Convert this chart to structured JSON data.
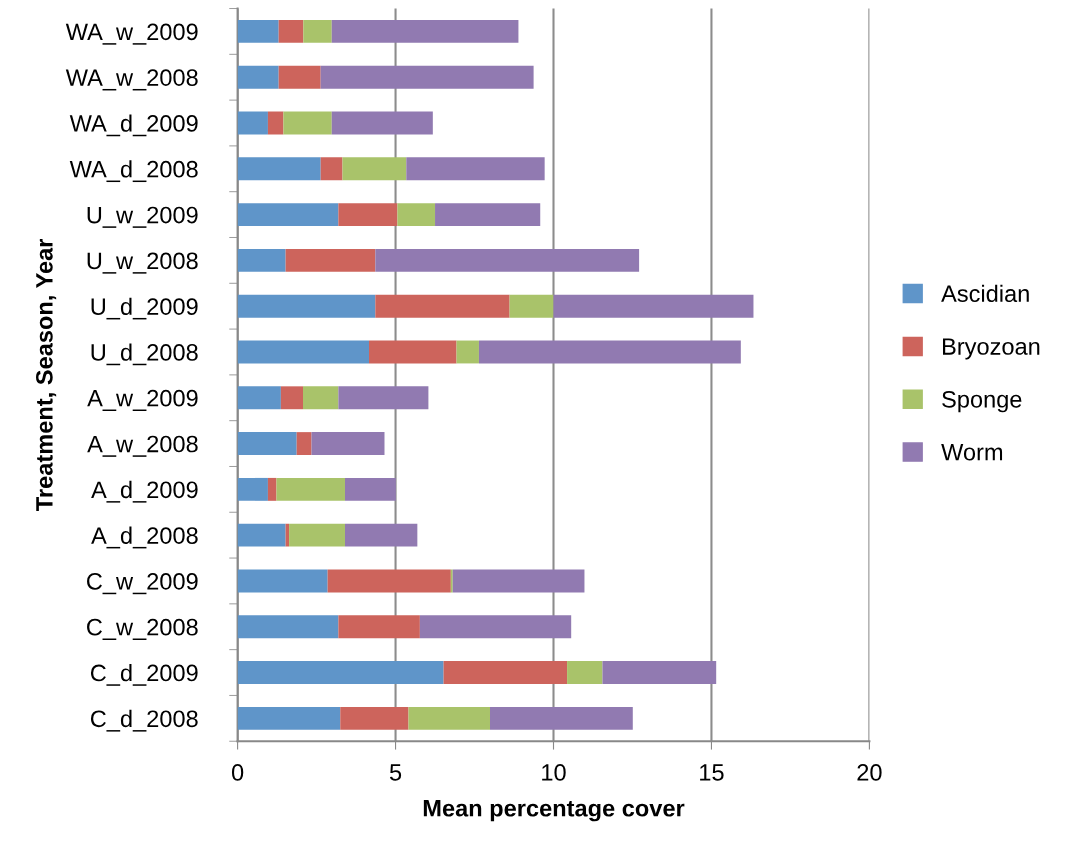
{
  "chart_data": {
    "type": "bar",
    "orientation": "horizontal",
    "stacked": true,
    "xlabel": "Mean percentage cover",
    "ylabel": "Treatment, Season, Year",
    "categories": [
      "WA_w_2009",
      "WA_w_2008",
      "WA_d_2009",
      "WA_d_2008",
      "U_w_2009",
      "U_w_2008",
      "U_d_2009",
      "U_d_2008",
      "A_w_2009",
      "A_w_2008",
      "A_d_2009",
      "A_d_2008",
      "C_w_2009",
      "C_w_2008",
      "C_d_2009",
      "C_d_2008"
    ],
    "series": [
      {
        "name": "Ascidian",
        "color": "#5f95c9",
        "values": [
          1.3,
          1.3,
          0.96,
          2.63,
          3.19,
          1.52,
          4.36,
          4.16,
          1.37,
          1.87,
          0.96,
          1.52,
          2.85,
          3.19,
          6.52,
          3.25
        ]
      },
      {
        "name": "Bryozoan",
        "color": "#cd645c",
        "values": [
          0.78,
          1.33,
          0.49,
          0.69,
          1.87,
          2.84,
          4.25,
          2.77,
          0.7,
          0.47,
          0.27,
          0.11,
          3.9,
          2.58,
          3.91,
          2.16
        ]
      },
      {
        "name": "Sponge",
        "color": "#a9c36a",
        "values": [
          0.9,
          0,
          1.53,
          2.02,
          1.19,
          0,
          1.39,
          0.71,
          1.12,
          0,
          2.17,
          1.77,
          0.06,
          0,
          1.12,
          2.58
        ]
      },
      {
        "name": "Worm",
        "color": "#917ab1",
        "values": [
          5.91,
          6.74,
          3.2,
          4.38,
          3.33,
          8.35,
          6.33,
          8.29,
          2.85,
          2.31,
          1.61,
          2.29,
          4.17,
          4.79,
          3.6,
          4.52
        ]
      }
    ],
    "xlim": [
      0,
      20
    ],
    "xticks": [
      0,
      5,
      10,
      15,
      20
    ],
    "grid": "x",
    "legend": "right"
  }
}
